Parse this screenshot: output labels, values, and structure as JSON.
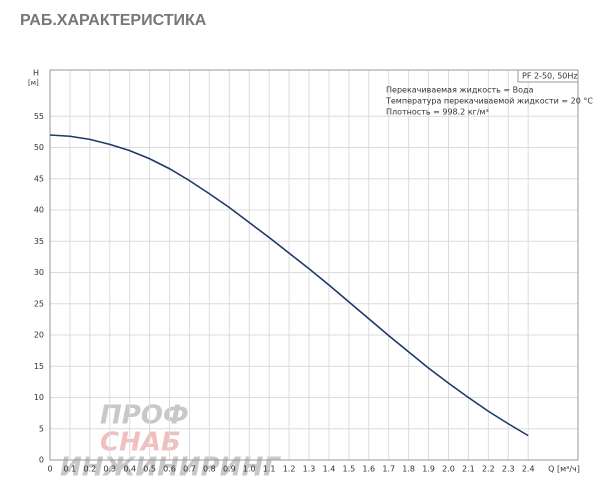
{
  "chart_data": {
    "type": "line",
    "title": "РАБ.ХАРАКТЕРИСТИКА",
    "y_label": "H",
    "y_unit": "[м]",
    "x_label": "Q [м³/ч]",
    "info_title": "PF 2-50, 50Hz",
    "info_lines": [
      "Перекачиваемая жидкость = Вода",
      "Температура перекачиваемой жидкости = 20 °C",
      "Плотность = 998.2 кг/м³"
    ],
    "watermark": [
      "ПРОФ",
      "СНАБ",
      "ИНЖИНИРИНГ"
    ],
    "x": [
      0,
      0.1,
      0.2,
      0.3,
      0.4,
      0.5,
      0.6,
      0.7,
      0.8,
      0.9,
      1.0,
      1.1,
      1.2,
      1.3,
      1.4,
      1.5,
      1.6,
      1.7,
      1.8,
      1.9,
      2.0,
      2.1,
      2.2,
      2.3,
      2.4
    ],
    "series": [
      {
        "name": "PF 2-50, 50Hz",
        "color": "#1f3a68",
        "values": [
          52,
          51.8,
          51.3,
          50.5,
          49.5,
          48.2,
          46.6,
          44.7,
          42.6,
          40.4,
          38.0,
          35.6,
          33.1,
          30.6,
          28.0,
          25.3,
          22.6,
          19.9,
          17.3,
          14.7,
          12.3,
          10.0,
          7.8,
          5.8,
          3.9
        ]
      }
    ],
    "xlim": [
      0,
      2.65
    ],
    "ylim": [
      0,
      62.4
    ],
    "xticks": [
      0,
      0.1,
      0.2,
      0.3,
      0.4,
      0.5,
      0.6,
      0.7,
      0.8,
      0.9,
      {
        "value": 1,
        "label": "1.0"
      },
      1.1,
      1.2,
      1.3,
      1.4,
      1.5,
      1.6,
      1.7,
      1.8,
      1.9,
      {
        "value": 2,
        "label": "2.0"
      },
      2.1,
      2.2,
      2.3,
      2.4
    ],
    "yticks": [
      0,
      5,
      10,
      15,
      20,
      25,
      30,
      35,
      40,
      45,
      50,
      55
    ],
    "grid": true
  }
}
